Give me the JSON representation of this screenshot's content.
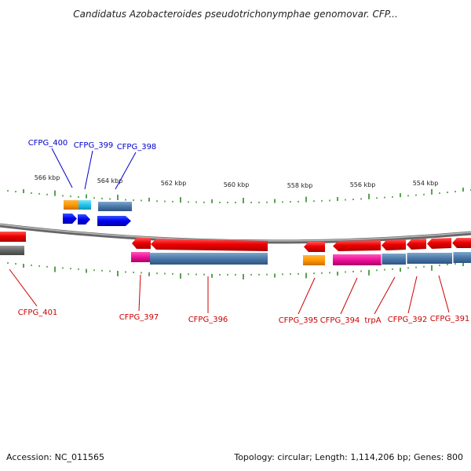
{
  "title": "Candidatus Azobacteroides pseudotrichonymphae genomovar. CFP...",
  "footer": {
    "accession": "Accession: NC_011565",
    "summary": "Topology: circular; Length: 1,114,206 bp; Genes: 800"
  },
  "colors": {
    "top_label": "#0000cc",
    "bottom_label": "#cc0000",
    "tick": "#2e8b22",
    "backbone": "#888888"
  },
  "ticks": [
    {
      "label": "566 kbp"
    },
    {
      "label": "564 kbp"
    },
    {
      "label": "562 kbp"
    },
    {
      "label": "560 kbp"
    },
    {
      "label": "558 kbp"
    },
    {
      "label": "556 kbp"
    },
    {
      "label": "554 kbp"
    }
  ],
  "top_labels": [
    {
      "label": "CFPG_400"
    },
    {
      "label": "CFPG_399"
    },
    {
      "label": "CFPG_398"
    }
  ],
  "bottom_labels": [
    {
      "label": "CFPG_401"
    },
    {
      "label": "CFPG_397"
    },
    {
      "label": "CFPG_396"
    },
    {
      "label": "CFPG_395"
    },
    {
      "label": "CFPG_394"
    },
    {
      "label": "trpA"
    },
    {
      "label": "CFPG_392"
    },
    {
      "label": "CFPG_391"
    }
  ]
}
